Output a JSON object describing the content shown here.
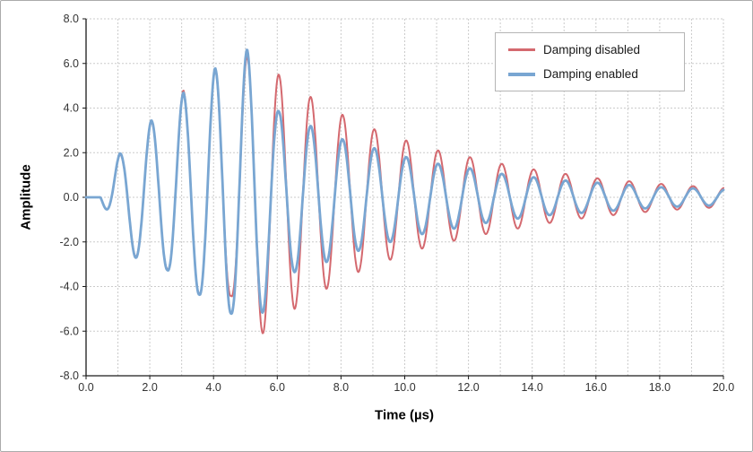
{
  "figure": {
    "background": "#ffffff",
    "border_color": "#ababab"
  },
  "chart_data": {
    "type": "line",
    "title": "",
    "xlabel": "Time (µs)",
    "ylabel": "Amplitude",
    "xlim": [
      0,
      20
    ],
    "ylim": [
      -8,
      8
    ],
    "xticks": [
      0,
      2,
      4,
      6,
      8,
      10,
      12,
      14,
      16,
      18,
      20
    ],
    "xtick_labels": [
      "0.0",
      "2.0",
      "4.0",
      "6.0",
      "8.0",
      "10.0",
      "12.0",
      "14.0",
      "16.0",
      "18.0",
      "20.0"
    ],
    "yticks": [
      -8,
      -6,
      -4,
      -2,
      0,
      2,
      4,
      6,
      8
    ],
    "ytick_labels": [
      "-8.0",
      "-6.0",
      "-4.0",
      "-2.0",
      "0.0",
      "2.0",
      "4.0",
      "6.0",
      "8.0"
    ],
    "grid": {
      "on": true,
      "x_step": 1,
      "y_step": 2,
      "color": "#cbcbcb",
      "style": "dashed"
    },
    "axis_color": "#1a1a1a",
    "legend_position": "top-right",
    "series": [
      {
        "name": "Damping disabled",
        "color": "#d4696f",
        "period_us": 1.0,
        "sine_phase_us": 0.8,
        "envelope_points": [
          [
            0.45,
            0
          ],
          [
            0.55,
            0.35
          ],
          [
            1.05,
            1.9
          ],
          [
            1.55,
            2.65
          ],
          [
            2.05,
            3.4
          ],
          [
            2.55,
            3.2
          ],
          [
            3.05,
            4.8
          ],
          [
            3.55,
            4.3
          ],
          [
            4.05,
            5.8
          ],
          [
            4.55,
            4.4
          ],
          [
            5.05,
            6.35
          ],
          [
            5.55,
            6.1
          ],
          [
            6.05,
            5.5
          ],
          [
            6.55,
            5.0
          ],
          [
            7.05,
            4.5
          ],
          [
            7.55,
            4.1
          ],
          [
            8.05,
            3.7
          ],
          [
            8.55,
            3.35
          ],
          [
            9.05,
            3.05
          ],
          [
            9.55,
            2.8
          ],
          [
            10.05,
            2.55
          ],
          [
            10.55,
            2.3
          ],
          [
            11.05,
            2.1
          ],
          [
            11.55,
            1.95
          ],
          [
            12.05,
            1.8
          ],
          [
            12.55,
            1.65
          ],
          [
            13.05,
            1.5
          ],
          [
            13.55,
            1.4
          ],
          [
            14.05,
            1.25
          ],
          [
            14.55,
            1.15
          ],
          [
            15.05,
            1.05
          ],
          [
            15.55,
            0.95
          ],
          [
            16.05,
            0.85
          ],
          [
            16.55,
            0.8
          ],
          [
            17.05,
            0.72
          ],
          [
            17.55,
            0.66
          ],
          [
            18.05,
            0.6
          ],
          [
            18.55,
            0.55
          ],
          [
            19.05,
            0.5
          ],
          [
            19.55,
            0.47
          ],
          [
            20.0,
            0.44
          ]
        ]
      },
      {
        "name": "Damping enabled",
        "color": "#79a6d2",
        "period_us": 1.0,
        "sine_phase_us": 0.8,
        "envelope_points": [
          [
            0.45,
            0
          ],
          [
            0.55,
            0.35
          ],
          [
            1.05,
            1.95
          ],
          [
            1.55,
            2.7
          ],
          [
            2.05,
            3.45
          ],
          [
            2.55,
            3.25
          ],
          [
            3.05,
            4.7
          ],
          [
            3.55,
            4.35
          ],
          [
            4.05,
            5.8
          ],
          [
            4.55,
            5.2
          ],
          [
            5.05,
            6.65
          ],
          [
            5.55,
            5.15
          ],
          [
            6.05,
            3.85
          ],
          [
            6.55,
            3.35
          ],
          [
            7.05,
            3.2
          ],
          [
            7.55,
            2.9
          ],
          [
            8.05,
            2.6
          ],
          [
            8.55,
            2.4
          ],
          [
            9.05,
            2.2
          ],
          [
            9.55,
            2.0
          ],
          [
            10.05,
            1.8
          ],
          [
            10.55,
            1.65
          ],
          [
            11.05,
            1.5
          ],
          [
            11.55,
            1.4
          ],
          [
            12.05,
            1.3
          ],
          [
            12.55,
            1.15
          ],
          [
            13.05,
            1.05
          ],
          [
            13.55,
            0.95
          ],
          [
            14.05,
            0.9
          ],
          [
            14.55,
            0.8
          ],
          [
            15.05,
            0.75
          ],
          [
            15.55,
            0.7
          ],
          [
            16.05,
            0.65
          ],
          [
            16.55,
            0.6
          ],
          [
            17.05,
            0.55
          ],
          [
            17.55,
            0.5
          ],
          [
            18.05,
            0.45
          ],
          [
            18.55,
            0.42
          ],
          [
            19.05,
            0.4
          ],
          [
            19.55,
            0.37
          ],
          [
            20.0,
            0.35
          ]
        ]
      }
    ]
  }
}
